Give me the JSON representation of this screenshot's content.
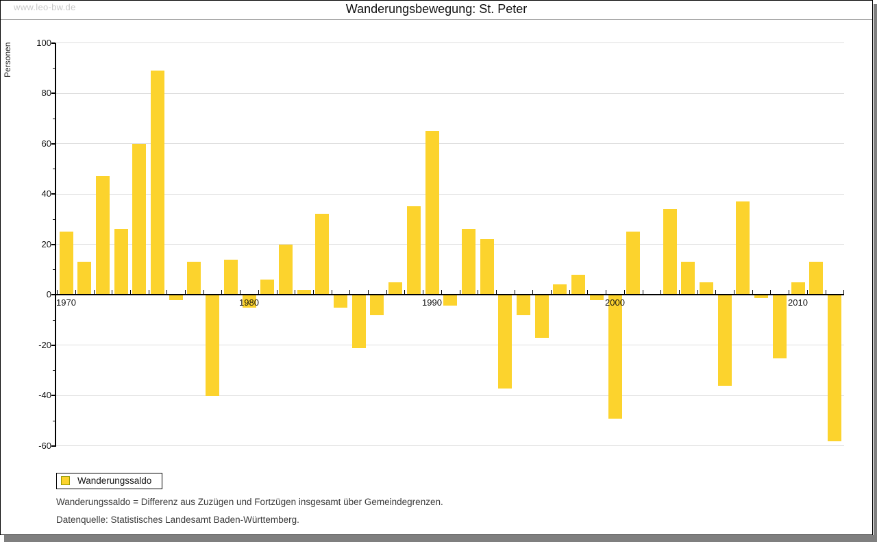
{
  "page": {
    "watermark": "www.leo-bw.de",
    "title": "Wanderungsbewegung: St. Peter"
  },
  "legend": {
    "label": "Wanderungssaldo",
    "swatch_color": "#fcd32d",
    "swatch_border_color": "#999900"
  },
  "captions": {
    "definition": "Wanderungssaldo = Differenz aus Zuzügen und Fortzügen insgesamt über Gemeindegrenzen.",
    "source": "Datenquelle: Statistisches Landesamt Baden-Württemberg."
  },
  "chart_data": {
    "type": "bar",
    "title": "Wanderungsbewegung: St. Peter",
    "xlabel": "",
    "ylabel": "Personen",
    "x": [
      1970,
      1971,
      1972,
      1973,
      1974,
      1975,
      1976,
      1977,
      1978,
      1979,
      1980,
      1981,
      1982,
      1983,
      1984,
      1985,
      1986,
      1987,
      1988,
      1989,
      1990,
      1991,
      1992,
      1993,
      1994,
      1995,
      1996,
      1997,
      1998,
      1999,
      2000,
      2001,
      2002,
      2003,
      2004,
      2005,
      2006,
      2007,
      2008,
      2009,
      2010,
      2011,
      2012
    ],
    "series": [
      {
        "name": "Wanderungssaldo",
        "values": [
          25,
          13,
          47,
          26,
          60,
          89,
          -2,
          13,
          -40,
          14,
          -5,
          6,
          20,
          2,
          32,
          -5,
          -21,
          -8,
          5,
          35,
          65,
          -4,
          26,
          22,
          -37,
          -8,
          -17,
          4,
          8,
          -2,
          -49,
          25,
          0,
          34,
          13,
          5,
          -36,
          37,
          -1,
          -25,
          5,
          13,
          -58
        ]
      }
    ],
    "ylim": [
      -60,
      100
    ],
    "ytick_step": 20,
    "ytick_minor_step": 10,
    "labeled_xticks": [
      1970,
      1980,
      1990,
      2000,
      2010
    ],
    "grid": true,
    "legend_position": "bottom-left",
    "bar_color": "#fcd32d",
    "gridline_color": "#dedede",
    "axis_color": "#000000"
  }
}
